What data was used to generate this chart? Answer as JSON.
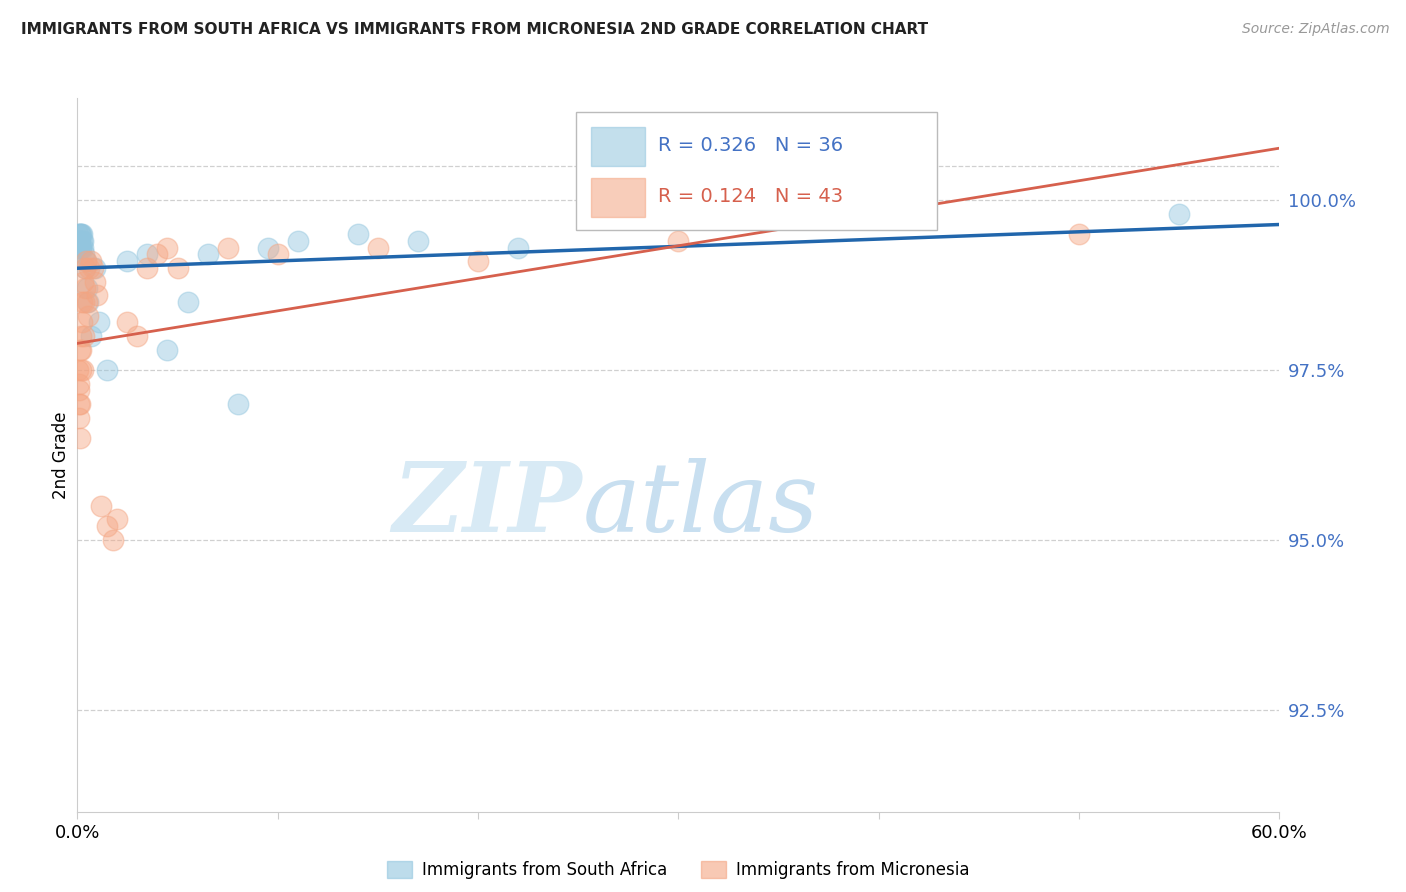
{
  "title": "IMMIGRANTS FROM SOUTH AFRICA VS IMMIGRANTS FROM MICRONESIA 2ND GRADE CORRELATION CHART",
  "source": "Source: ZipAtlas.com",
  "ylabel": "2nd Grade",
  "ylabel_right_ticks": [
    92.5,
    95.0,
    97.5,
    100.0
  ],
  "ylabel_right_labels": [
    "92.5%",
    "95.0%",
    "97.5%",
    "100.0%"
  ],
  "xmin": 0.0,
  "xmax": 60.0,
  "ymin": 91.0,
  "ymax": 101.5,
  "blue_color": "#92c5de",
  "blue_line_color": "#2166ac",
  "pink_color": "#f4a582",
  "pink_line_color": "#d6604d",
  "blue_label": "Immigrants from South Africa",
  "pink_label": "Immigrants from Micronesia",
  "blue_R": 0.326,
  "blue_N": 36,
  "pink_R": 0.124,
  "pink_N": 43,
  "blue_x": [
    0.05,
    0.08,
    0.1,
    0.12,
    0.15,
    0.18,
    0.2,
    0.22,
    0.25,
    0.28,
    0.3,
    0.35,
    0.4,
    0.5,
    0.55,
    0.7,
    0.9,
    1.1,
    1.5,
    2.5,
    3.5,
    4.5,
    5.5,
    6.5,
    8.0,
    9.5,
    11.0,
    14.0,
    17.0,
    22.0,
    55.0,
    0.06,
    0.09,
    0.13,
    0.17,
    0.45
  ],
  "blue_y": [
    99.5,
    99.4,
    99.3,
    99.5,
    99.4,
    99.5,
    99.3,
    99.4,
    99.5,
    99.3,
    99.4,
    99.2,
    99.0,
    98.7,
    98.5,
    98.0,
    99.0,
    98.2,
    97.5,
    99.1,
    99.2,
    97.8,
    98.5,
    99.2,
    97.0,
    99.3,
    99.4,
    99.5,
    99.4,
    99.3,
    99.8,
    99.4,
    99.3,
    99.5,
    99.3,
    99.1
  ],
  "pink_x": [
    0.04,
    0.06,
    0.08,
    0.09,
    0.1,
    0.12,
    0.13,
    0.15,
    0.17,
    0.18,
    0.2,
    0.22,
    0.25,
    0.28,
    0.3,
    0.33,
    0.35,
    0.38,
    0.4,
    0.45,
    0.5,
    0.6,
    0.7,
    0.8,
    0.9,
    1.0,
    1.2,
    1.5,
    1.8,
    2.0,
    2.5,
    3.0,
    3.5,
    4.0,
    4.5,
    5.0,
    7.5,
    10.0,
    15.0,
    20.0,
    30.0,
    50.0,
    0.55
  ],
  "pink_y": [
    97.5,
    97.2,
    97.0,
    96.8,
    97.3,
    97.0,
    96.5,
    97.8,
    97.5,
    98.0,
    97.8,
    98.2,
    98.5,
    98.8,
    97.5,
    98.0,
    98.5,
    98.7,
    99.0,
    99.1,
    98.5,
    99.0,
    99.1,
    99.0,
    98.8,
    98.6,
    95.5,
    95.2,
    95.0,
    95.3,
    98.2,
    98.0,
    99.0,
    99.2,
    99.3,
    99.0,
    99.3,
    99.2,
    99.3,
    99.1,
    99.4,
    99.5,
    98.3
  ],
  "watermark_zip": "ZIP",
  "watermark_atlas": "atlas",
  "watermark_color": "#d8eaf5",
  "background_color": "#ffffff",
  "grid_color": "#d0d0d0"
}
